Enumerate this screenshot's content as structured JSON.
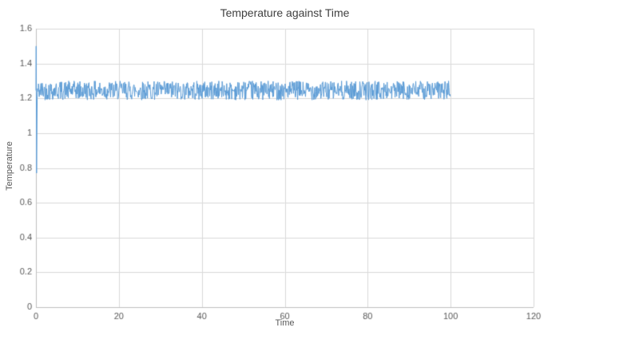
{
  "chart_data": {
    "type": "line",
    "title": "Temperature against Time",
    "xlabel": "Time",
    "ylabel": "Temperature",
    "xlim": [
      0,
      120
    ],
    "ylim": [
      0,
      1.6
    ],
    "x_tick_values": [
      0,
      20,
      40,
      60,
      80,
      100,
      120
    ],
    "x_tick_labels": [
      "0",
      "20",
      "40",
      "60",
      "80",
      "100",
      "120"
    ],
    "y_tick_values": [
      0,
      0.2,
      0.4,
      0.6,
      0.8,
      1,
      1.2,
      1.4,
      1.6
    ],
    "y_tick_labels": [
      "0",
      "0.2",
      "0.4",
      "0.6",
      "0.8",
      "1",
      "1.2",
      "1.4",
      "1.6"
    ],
    "grid": true,
    "legend": "none",
    "line_color": "#5B9BD5",
    "gridline_color": "#D9D9D9",
    "axis_color": "#BFBFBF",
    "tick_label_color": "#595959",
    "series": [
      {
        "name": "Temperature",
        "pattern": "noisy-flat",
        "x_start": 0,
        "x_end": 100,
        "x_step": 0.1,
        "mean": 1.245,
        "noise_amplitude": 0.055,
        "seed": 42,
        "initial_transient": [
          [
            0,
            1.245
          ],
          [
            0.05,
            1.5
          ],
          [
            0.15,
            0.77
          ],
          [
            0.3,
            1.2
          ]
        ]
      }
    ]
  }
}
